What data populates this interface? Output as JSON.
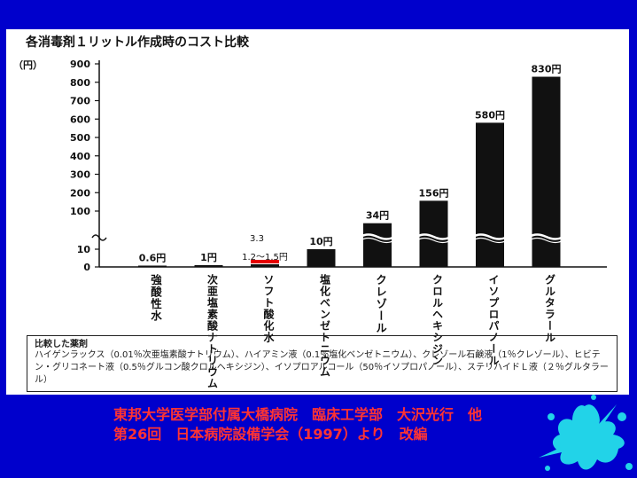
{
  "chart_data": {
    "type": "bar",
    "title": "各消毒剤１リットル作成時のコスト比較",
    "unit_label": "（円）",
    "y_ticks_upper": [
      100,
      200,
      300,
      400,
      500,
      600,
      700,
      800,
      900
    ],
    "y_ticks_lower": [
      0,
      10
    ],
    "axis_break": true,
    "categories": [
      "強酸性水",
      "次亜塩素酸ナトリウム",
      "ソフト酸化水",
      "塩化ベンゼトニウム",
      "クレゾール",
      "クロルヘキシジン",
      "イソプロパノール",
      "グルタラール"
    ],
    "values": [
      0.6,
      1,
      1.5,
      10,
      34,
      156,
      580,
      830
    ],
    "value_labels": [
      "0.6円",
      "1円",
      "1.2〜1.5円",
      "10円",
      "34円",
      "156円",
      "580円",
      "830円"
    ],
    "annotations": [
      {
        "text": "3.3",
        "category": "ソフト酸化水"
      }
    ]
  },
  "legend_box": {
    "title": "比較した薬剤",
    "text": "ハイゲンラックス（0.01％次亜塩素酸ナトリウム）、ハイアミン液（0.1％塩化ベンゼトニウム）、クレゾール石鹸液（1％クレゾール）、ヒビテン・グリコネート液（0.5％グルコン酸クロルヘキシジン）、イソプロアルコール（50％イソプロパノール）、ステリハイドＬ液（２％グルタラール）"
  },
  "credit": {
    "line1": "東邦大学医学部付属大橋病院　臨床工学部　大沢光行　他",
    "line2": "第26回　日本病院設備学会（1997）より　改編"
  },
  "colors": {
    "background": "#0000cc",
    "panel": "#ffffff",
    "bar": "#111111",
    "highlight": "#e60000",
    "credit_text": "#ff3333",
    "splat": "#22d3e8"
  }
}
